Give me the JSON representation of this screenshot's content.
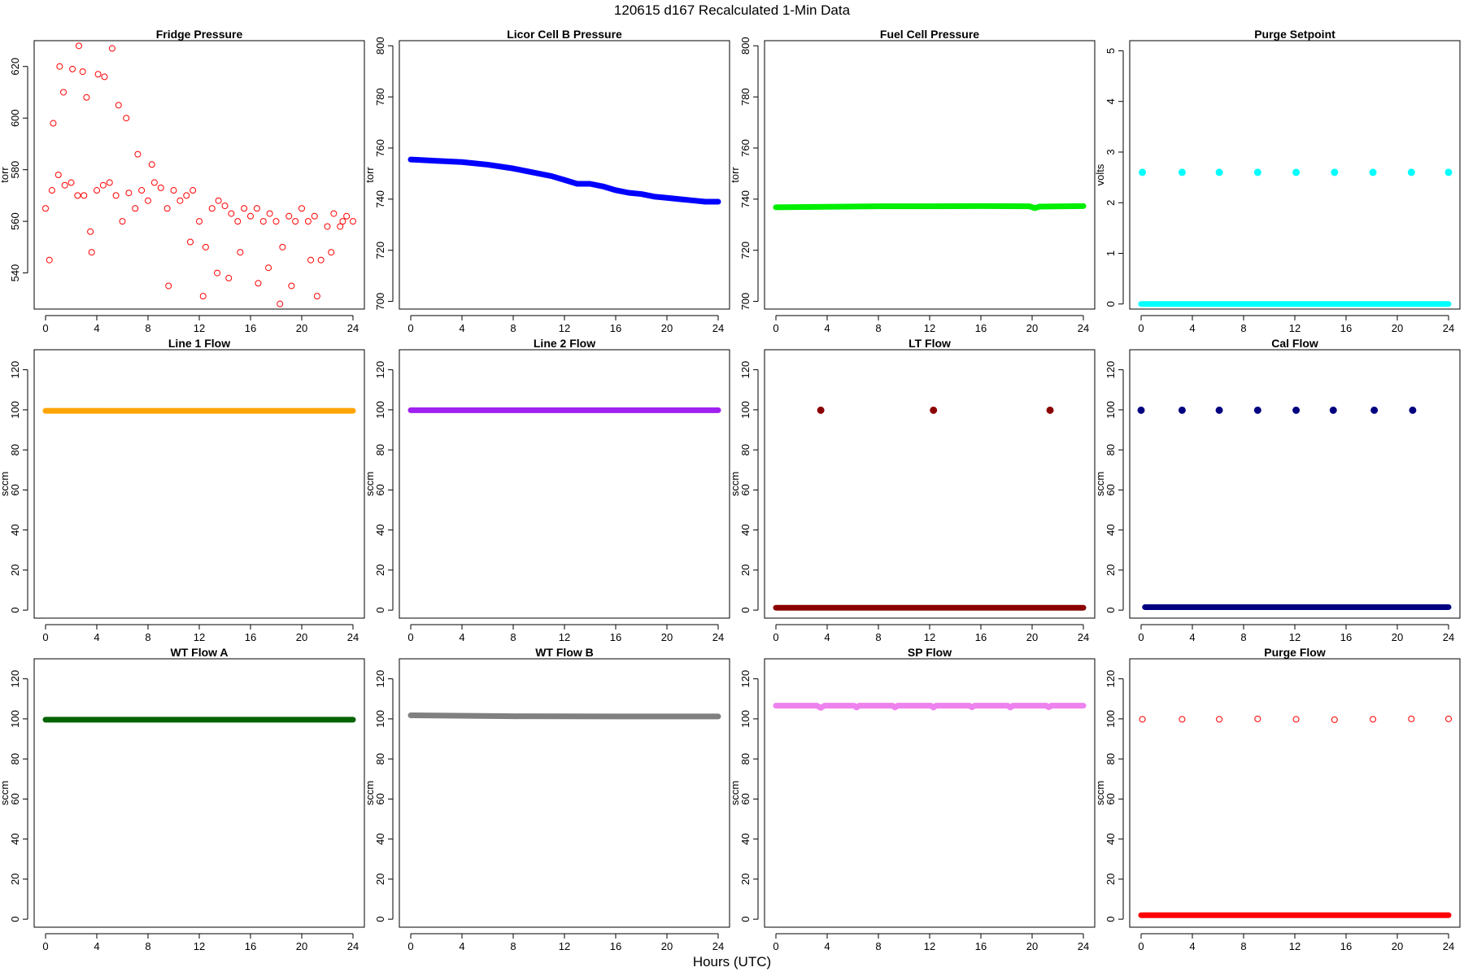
{
  "figure": {
    "title": "120615   d167   Recalculated 1-Min Data",
    "xlabel": "Hours (UTC)"
  },
  "chart_data": [
    {
      "type": "scatter",
      "title": "Fridge Pressure",
      "ylabel": "torr",
      "xlim": [
        0,
        24
      ],
      "ylim": [
        526,
        630
      ],
      "xticks": [
        0,
        4,
        8,
        12,
        16,
        20,
        24
      ],
      "yticks": [
        540,
        560,
        580,
        600,
        620
      ],
      "color": "#ff0000",
      "marker": "open",
      "series": [
        {
          "x": [
            0,
            0.5,
            1,
            1.5,
            2,
            2.5,
            3,
            3.5,
            4,
            4.5,
            5,
            5.5,
            6,
            6.5,
            7,
            7.5,
            8,
            8.5,
            9,
            9.5,
            10,
            10.5,
            11,
            11.5,
            12,
            12.5,
            13,
            13.5,
            14,
            14.5,
            15,
            15.5,
            16,
            16.5,
            17,
            17.5,
            18,
            18.5,
            19,
            19.5,
            20,
            20.5,
            21,
            21.5,
            22,
            22.5,
            23,
            23.5,
            24,
            0.3,
            0.6,
            1.1,
            1.4,
            2.1,
            2.6,
            2.9,
            3.2,
            3.6,
            4.1,
            4.6,
            5.2,
            5.7,
            6.3,
            7.2,
            8.3,
            9.6,
            11.3,
            12.3,
            13.4,
            14.3,
            15.2,
            16.6,
            17.4,
            18.3,
            19.2,
            20.7,
            21.2,
            22.3,
            23.2
          ],
          "y": [
            565,
            572,
            578,
            574,
            575,
            570,
            570,
            556,
            572,
            574,
            575,
            570,
            560,
            571,
            565,
            572,
            568,
            575,
            573,
            565,
            572,
            568,
            570,
            572,
            560,
            550,
            565,
            568,
            566,
            563,
            560,
            565,
            562,
            565,
            560,
            563,
            560,
            550,
            562,
            560,
            565,
            560,
            562,
            545,
            558,
            563,
            558,
            562,
            560,
            545,
            598,
            620,
            610,
            619,
            628,
            618,
            608,
            548,
            617,
            616,
            627,
            605,
            600,
            586,
            582,
            535,
            552,
            531,
            540,
            538,
            548,
            536,
            542,
            528,
            535,
            545,
            531,
            548,
            560
          ]
        }
      ]
    },
    {
      "type": "line",
      "title": "Licor Cell B Pressure",
      "ylabel": "torr",
      "xlim": [
        0,
        24
      ],
      "ylim": [
        697,
        802
      ],
      "xticks": [
        0,
        4,
        8,
        12,
        16,
        20,
        24
      ],
      "yticks": [
        700,
        720,
        740,
        760,
        780,
        800
      ],
      "color": "#0000ff",
      "marker": "solid",
      "series": [
        {
          "x": [
            0,
            2,
            4,
            6,
            8,
            9,
            10,
            11,
            12,
            13,
            14,
            15,
            16,
            17,
            18,
            19,
            20,
            21,
            22,
            23,
            24
          ],
          "y": [
            755.5,
            755,
            754.5,
            753.5,
            752,
            751,
            750,
            749,
            747.5,
            746,
            746,
            745,
            743.5,
            742.5,
            742,
            741,
            740.5,
            740,
            739.5,
            739,
            739
          ]
        }
      ]
    },
    {
      "type": "line",
      "title": "Fuel Cell Pressure",
      "ylabel": "torr",
      "xlim": [
        0,
        24
      ],
      "ylim": [
        697,
        802
      ],
      "xticks": [
        0,
        4,
        8,
        12,
        16,
        20,
        24
      ],
      "yticks": [
        700,
        720,
        740,
        760,
        780,
        800
      ],
      "color": "#00ee00",
      "marker": "solid",
      "series": [
        {
          "x": [
            0,
            4,
            8,
            12,
            16,
            19.8,
            20.2,
            20.6,
            24
          ],
          "y": [
            736.8,
            737,
            737.2,
            737.2,
            737.3,
            737.2,
            736.5,
            737.1,
            737.3
          ]
        }
      ]
    },
    {
      "type": "scatter",
      "title": "Purge Setpoint",
      "ylabel": "volts",
      "xlim": [
        0,
        24
      ],
      "ylim": [
        -0.1,
        5.2
      ],
      "xticks": [
        0,
        4,
        8,
        12,
        16,
        20,
        24
      ],
      "yticks": [
        0,
        1,
        2,
        3,
        4,
        5
      ],
      "color": "#00ffff",
      "marker": "solid",
      "series": [
        {
          "x": [
            0.1,
            3.2,
            6.1,
            9.1,
            12.1,
            15.1,
            18.1,
            21.1,
            24
          ],
          "y": [
            2.6,
            2.6,
            2.6,
            2.6,
            2.6,
            2.6,
            2.6,
            2.6,
            2.6
          ]
        },
        {
          "x": [
            0,
            24
          ],
          "y": [
            0,
            0
          ]
        }
      ]
    },
    {
      "type": "line",
      "title": "Line 1 Flow",
      "ylabel": "sccm",
      "xlim": [
        0,
        24
      ],
      "ylim": [
        -4,
        130
      ],
      "xticks": [
        0,
        4,
        8,
        12,
        16,
        20,
        24
      ],
      "yticks": [
        0,
        20,
        40,
        60,
        80,
        100,
        120
      ],
      "color": "#ffa500",
      "marker": "solid",
      "series": [
        {
          "x": [
            0,
            24
          ],
          "y": [
            99.5,
            99.5
          ]
        }
      ]
    },
    {
      "type": "line",
      "title": "Line 2 Flow",
      "ylabel": "sccm",
      "xlim": [
        0,
        24
      ],
      "ylim": [
        -4,
        130
      ],
      "xticks": [
        0,
        4,
        8,
        12,
        16,
        20,
        24
      ],
      "yticks": [
        0,
        20,
        40,
        60,
        80,
        100,
        120
      ],
      "color": "#a020f0",
      "marker": "solid",
      "series": [
        {
          "x": [
            0,
            24
          ],
          "y": [
            99.8,
            99.8
          ]
        }
      ]
    },
    {
      "type": "scatter",
      "title": "LT Flow",
      "ylabel": "sccm",
      "xlim": [
        0,
        24
      ],
      "ylim": [
        -4,
        130
      ],
      "xticks": [
        0,
        4,
        8,
        12,
        16,
        20,
        24
      ],
      "yticks": [
        0,
        20,
        40,
        60,
        80,
        100,
        120
      ],
      "color": "#8b0000",
      "marker": "solid",
      "series": [
        {
          "x": [
            3.5,
            12.3,
            21.4
          ],
          "y": [
            99.8,
            99.8,
            99.8
          ]
        },
        {
          "x": [
            0,
            24
          ],
          "y": [
            1.2,
            1.2
          ]
        }
      ]
    },
    {
      "type": "scatter",
      "title": "Cal Flow",
      "ylabel": "sccm",
      "xlim": [
        0,
        24
      ],
      "ylim": [
        -4,
        130
      ],
      "xticks": [
        0,
        4,
        8,
        12,
        16,
        20,
        24
      ],
      "yticks": [
        0,
        20,
        40,
        60,
        80,
        100,
        120
      ],
      "color": "#000080",
      "marker": "solid",
      "series": [
        {
          "x": [
            0,
            3.2,
            6.1,
            9.1,
            12.1,
            15,
            18.2,
            21.2
          ],
          "y": [
            99.8,
            99.8,
            99.8,
            99.8,
            99.8,
            99.8,
            99.8,
            99.8
          ]
        },
        {
          "x": [
            0.3,
            24
          ],
          "y": [
            1.5,
            1.5
          ]
        }
      ]
    },
    {
      "type": "line",
      "title": "WT Flow A",
      "ylabel": "sccm",
      "xlim": [
        0,
        24
      ],
      "ylim": [
        -4,
        130
      ],
      "xticks": [
        0,
        4,
        8,
        12,
        16,
        20,
        24
      ],
      "yticks": [
        0,
        20,
        40,
        60,
        80,
        100,
        120
      ],
      "color": "#006400",
      "marker": "solid",
      "series": [
        {
          "x": [
            0,
            24
          ],
          "y": [
            99.6,
            99.6
          ]
        }
      ]
    },
    {
      "type": "line",
      "title": "WT Flow B",
      "ylabel": "sccm",
      "xlim": [
        0,
        24
      ],
      "ylim": [
        -4,
        130
      ],
      "xticks": [
        0,
        4,
        8,
        12,
        16,
        20,
        24
      ],
      "yticks": [
        0,
        20,
        40,
        60,
        80,
        100,
        120
      ],
      "color": "#808080",
      "marker": "solid",
      "series": [
        {
          "x": [
            0,
            8,
            16,
            24
          ],
          "y": [
            101.8,
            101.3,
            101.2,
            101.2
          ]
        }
      ]
    },
    {
      "type": "line",
      "title": "SP Flow",
      "ylabel": "sccm",
      "xlim": [
        0,
        24
      ],
      "ylim": [
        -4,
        130
      ],
      "xticks": [
        0,
        4,
        8,
        12,
        16,
        20,
        24
      ],
      "yticks": [
        0,
        20,
        40,
        60,
        80,
        100,
        120
      ],
      "color": "#ee82ee",
      "marker": "solid",
      "series": [
        {
          "x": [
            0,
            3.2,
            3.5,
            3.8,
            6.1,
            6.3,
            6.5,
            9.1,
            9.3,
            9.5,
            12.1,
            12.3,
            12.5,
            15.1,
            15.3,
            15.5,
            18.1,
            18.3,
            18.5,
            21.1,
            21.3,
            21.5,
            24
          ],
          "y": [
            106.6,
            106.6,
            105.5,
            106.6,
            106.6,
            105.7,
            106.6,
            106.6,
            105.7,
            106.6,
            106.6,
            105.7,
            106.6,
            106.6,
            105.8,
            106.6,
            106.6,
            105.7,
            106.6,
            106.6,
            105.8,
            106.6,
            106.6
          ]
        }
      ]
    },
    {
      "type": "scatter",
      "title": "Purge Flow",
      "ylabel": "sccm",
      "xlim": [
        0,
        24
      ],
      "ylim": [
        -4,
        130
      ],
      "xticks": [
        0,
        4,
        8,
        12,
        16,
        20,
        24
      ],
      "yticks": [
        0,
        20,
        40,
        60,
        80,
        100,
        120
      ],
      "color": "#ff0000",
      "marker": "open",
      "series": [
        {
          "x": [
            0.1,
            3.2,
            6.1,
            9.1,
            12.1,
            15.1,
            18.1,
            21.1,
            24
          ],
          "y": [
            99.8,
            99.8,
            99.8,
            100,
            99.8,
            99.6,
            99.8,
            100,
            100
          ]
        },
        {
          "x": [
            0,
            24
          ],
          "y": [
            2,
            2
          ]
        }
      ]
    }
  ]
}
